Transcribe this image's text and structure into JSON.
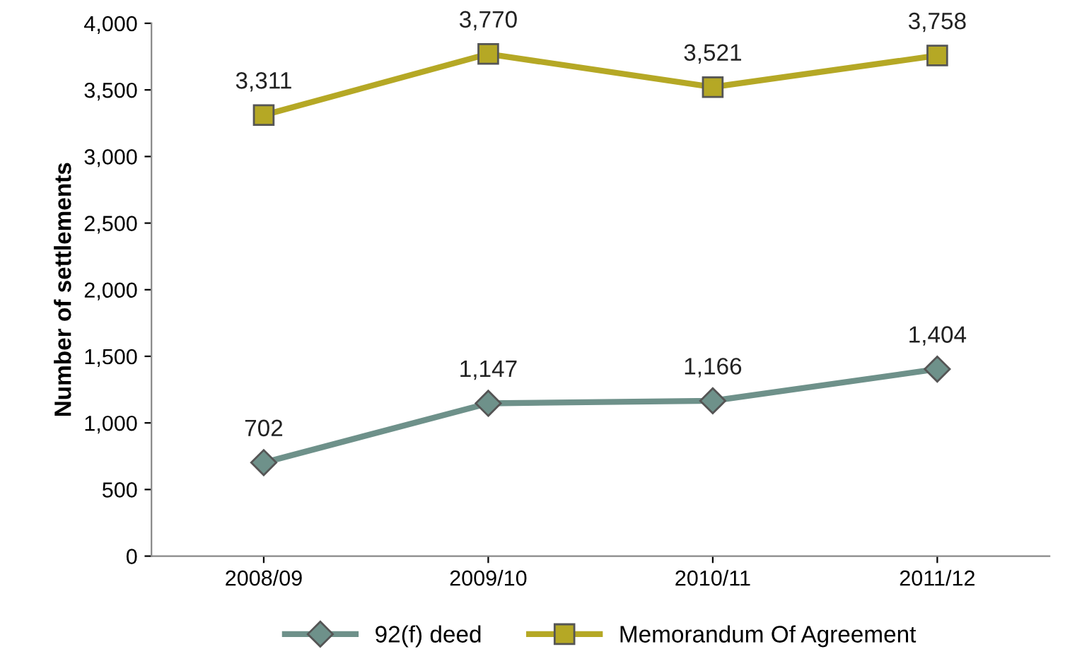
{
  "chart_data": {
    "type": "line",
    "ylabel": "Number of settlements",
    "categories": [
      "2008/09",
      "2009/10",
      "2010/11",
      "2011/12"
    ],
    "series": [
      {
        "name": "92(f) deed",
        "color": "#6e918a",
        "marker": "diamond",
        "values": [
          702,
          1147,
          1166,
          1404
        ],
        "value_labels": [
          "702",
          "1,147",
          "1,166",
          "1,404"
        ]
      },
      {
        "name": "Memorandum Of Agreement",
        "color": "#b5a825",
        "marker": "square",
        "values": [
          3311,
          3770,
          3521,
          3758
        ],
        "value_labels": [
          "3,311",
          "3,770",
          "3,521",
          "3,758"
        ]
      }
    ],
    "ylim": [
      0,
      4000
    ],
    "yticks": [
      0,
      500,
      {
        "value": 1000,
        "label": "1,000"
      },
      {
        "value": 1500,
        "label": "1,500"
      },
      {
        "value": 2000,
        "label": "2,000"
      },
      {
        "value": 2500,
        "label": "2,500"
      },
      {
        "value": 3000,
        "label": "3,000"
      },
      {
        "value": 3500,
        "label": "3,500"
      },
      {
        "value": 4000,
        "label": "4,000"
      }
    ],
    "grid": false,
    "legend": "bottom",
    "line_style": "solid"
  }
}
